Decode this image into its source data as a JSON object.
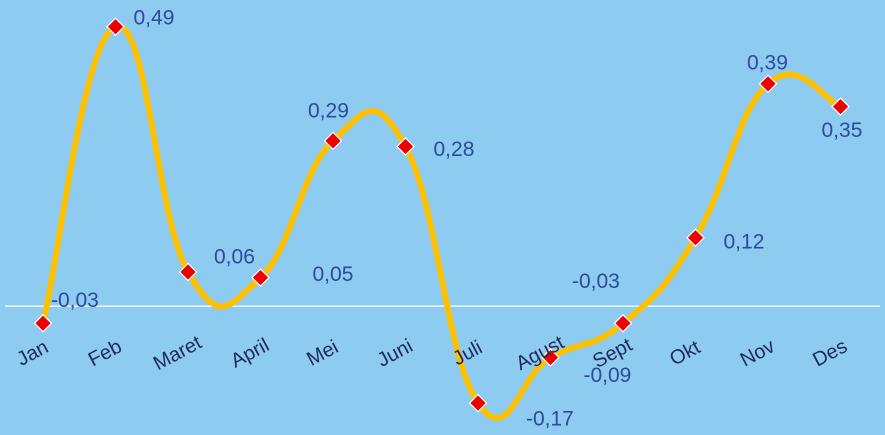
{
  "chart_data": {
    "type": "line",
    "categories": [
      "Jan",
      "Feb",
      "Maret",
      "April",
      "Mei",
      "Juni",
      "Juli",
      "Agust",
      "Sept",
      "Okt",
      "Nov",
      "Des"
    ],
    "series": [
      {
        "color": "#ffc000",
        "values": [
          -0.03,
          0.49,
          0.06,
          0.05,
          0.29,
          0.28,
          -0.17,
          -0.09,
          -0.03,
          0.12,
          0.39,
          0.35
        ],
        "value_labels": [
          "-0,03",
          "0,49",
          "0,06",
          "0,05",
          "0,29",
          "0,28",
          "-0,17",
          "-0,09",
          "-0,03",
          "0,12",
          "0,39",
          "0,35"
        ]
      }
    ],
    "ylim": [
      -0.226,
      0.537
    ]
  }
}
